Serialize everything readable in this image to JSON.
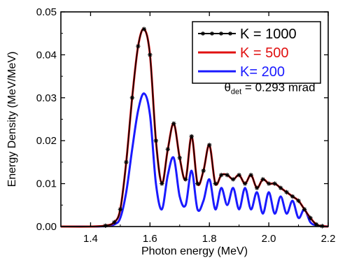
{
  "chart_data": {
    "type": "line",
    "xlabel": "Photon energy (MeV)",
    "ylabel": "Energy Density (MeV/MeV)",
    "xlim": [
      1.3,
      2.2
    ],
    "ylim": [
      0,
      0.05
    ],
    "xticks": [
      1.4,
      1.6,
      1.8,
      2.0,
      2.2
    ],
    "xtick_labels": [
      "1.4",
      "1.6",
      "1.8",
      "2.0",
      "2.2"
    ],
    "yticks": [
      0,
      0.01,
      0.02,
      0.03,
      0.04,
      0.05
    ],
    "ytick_labels": [
      "0.00",
      "0.01",
      "0.02",
      "0.03",
      "0.04",
      "0.05"
    ],
    "grid": false,
    "legend_position": "top-right",
    "annotation": {
      "symbol": "θ",
      "subscript": "det",
      "text": " = 0.293 mrad",
      "x": 1.85,
      "y": 0.0315
    },
    "series": [
      {
        "name": "K = 1000",
        "color": "#000000",
        "marker": "star",
        "x": [
          1.3,
          1.4,
          1.45,
          1.48,
          1.5,
          1.52,
          1.54,
          1.56,
          1.58,
          1.6,
          1.62,
          1.64,
          1.66,
          1.68,
          1.7,
          1.72,
          1.74,
          1.76,
          1.78,
          1.8,
          1.82,
          1.84,
          1.86,
          1.88,
          1.9,
          1.92,
          1.94,
          1.96,
          1.98,
          2.0,
          2.02,
          2.04,
          2.06,
          2.08,
          2.1,
          2.12,
          2.14,
          2.16,
          2.18,
          2.2
        ],
        "values": [
          0.0,
          0.0,
          0.0002,
          0.001,
          0.004,
          0.015,
          0.03,
          0.042,
          0.046,
          0.04,
          0.02,
          0.01,
          0.018,
          0.024,
          0.016,
          0.011,
          0.021,
          0.01,
          0.013,
          0.019,
          0.01,
          0.012,
          0.012,
          0.011,
          0.012,
          0.01,
          0.012,
          0.009,
          0.011,
          0.01,
          0.01,
          0.009,
          0.008,
          0.007,
          0.006,
          0.004,
          0.002,
          0.0005,
          0.0001,
          0.0
        ]
      },
      {
        "name": "K = 500",
        "color": "#e01010",
        "marker": "none",
        "x": [
          1.3,
          1.4,
          1.45,
          1.48,
          1.5,
          1.52,
          1.54,
          1.56,
          1.58,
          1.6,
          1.62,
          1.64,
          1.66,
          1.68,
          1.7,
          1.72,
          1.74,
          1.76,
          1.78,
          1.8,
          1.82,
          1.84,
          1.86,
          1.88,
          1.9,
          1.92,
          1.94,
          1.96,
          1.98,
          2.0,
          2.02,
          2.04,
          2.06,
          2.08,
          2.1,
          2.12,
          2.14,
          2.16,
          2.18,
          2.2
        ],
        "values": [
          0.0,
          0.0,
          0.0002,
          0.001,
          0.004,
          0.015,
          0.03,
          0.042,
          0.046,
          0.04,
          0.02,
          0.01,
          0.018,
          0.024,
          0.016,
          0.011,
          0.021,
          0.01,
          0.013,
          0.019,
          0.01,
          0.012,
          0.012,
          0.011,
          0.012,
          0.01,
          0.012,
          0.009,
          0.011,
          0.01,
          0.01,
          0.009,
          0.008,
          0.007,
          0.006,
          0.004,
          0.002,
          0.0005,
          0.0001,
          0.0
        ]
      },
      {
        "name": "K= 200",
        "color": "#1a1aff",
        "marker": "none",
        "x": [
          1.3,
          1.4,
          1.45,
          1.48,
          1.5,
          1.52,
          1.54,
          1.56,
          1.58,
          1.6,
          1.62,
          1.64,
          1.66,
          1.68,
          1.7,
          1.72,
          1.74,
          1.76,
          1.78,
          1.8,
          1.82,
          1.84,
          1.86,
          1.88,
          1.9,
          1.92,
          1.94,
          1.96,
          1.98,
          2.0,
          2.02,
          2.04,
          2.06,
          2.08,
          2.1,
          2.12,
          2.14,
          2.16,
          2.18,
          2.2
        ],
        "values": [
          0.0,
          0.0,
          0.0001,
          0.0005,
          0.002,
          0.008,
          0.018,
          0.027,
          0.031,
          0.026,
          0.01,
          0.004,
          0.012,
          0.016,
          0.007,
          0.005,
          0.013,
          0.004,
          0.006,
          0.011,
          0.004,
          0.009,
          0.005,
          0.009,
          0.004,
          0.009,
          0.004,
          0.008,
          0.003,
          0.008,
          0.003,
          0.007,
          0.003,
          0.006,
          0.002,
          0.004,
          0.001,
          0.0003,
          0.0001,
          0.0
        ]
      }
    ]
  }
}
